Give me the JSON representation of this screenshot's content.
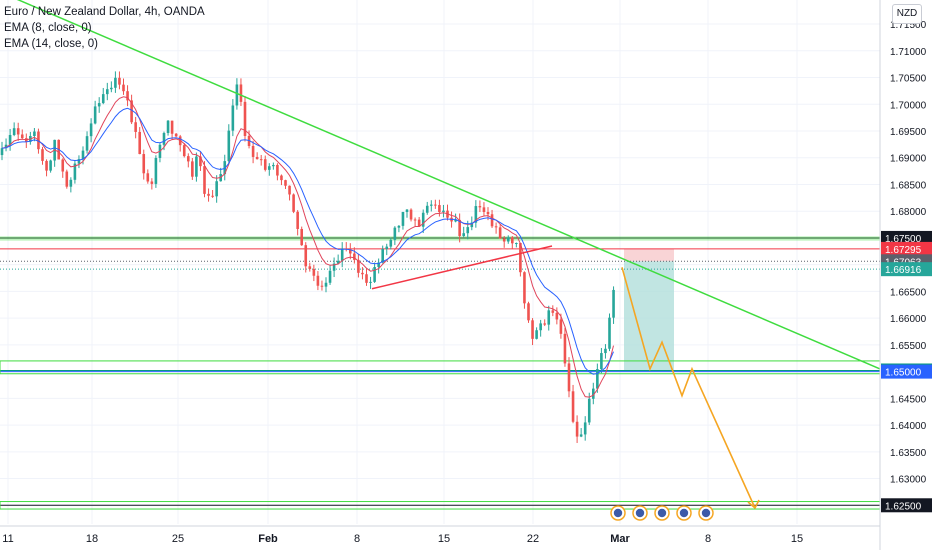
{
  "header": {
    "symbol": "Euro / New Zealand Dollar, 4h, OANDA",
    "indicators": [
      "EMA (8, close, 0)",
      "EMA (14, close, 0)"
    ],
    "currency": "NZD"
  },
  "colors": {
    "bull": "#26a69a",
    "bear": "#ef5350",
    "ema8": "#e0455b",
    "ema14": "#2962ff",
    "trendline": "#3fdc3f",
    "red_line": "#f23645",
    "projection": "#f5a623",
    "target_zone": "#b2dfdb",
    "stop_zone": "#f8c9cc",
    "label_black": "#131722",
    "label_red": "#f23645",
    "label_gray": "#5d606b",
    "label_teal": "#26a69a",
    "label_green": "#089981",
    "label_blue": "#2962ff"
  },
  "chart_data": {
    "type": "candlestick",
    "title": "Euro / New Zealand Dollar, 4h, OANDA",
    "x_tick_labels": [
      "11",
      "18",
      "25",
      "Feb",
      "8",
      "15",
      "22",
      "Mar",
      "8",
      "15"
    ],
    "y_tick_labels": [
      "1.71500",
      "1.71000",
      "1.70500",
      "1.70000",
      "1.69500",
      "1.69000",
      "1.68500",
      "1.68000",
      "1.67500",
      "1.67000",
      "1.66500",
      "1.66000",
      "1.65500",
      "1.65000",
      "1.64500",
      "1.64000",
      "1.63500",
      "1.63000",
      "1.62500"
    ],
    "ylim": [
      1.6215,
      1.7195
    ],
    "price_path": [
      [
        0,
        1.6905
      ],
      [
        6,
        1.6935
      ],
      [
        12,
        1.696
      ],
      [
        18,
        1.695
      ],
      [
        24,
        1.6915
      ],
      [
        30,
        1.6935
      ],
      [
        36,
        1.6945
      ],
      [
        42,
        1.69
      ],
      [
        48,
        1.688
      ],
      [
        54,
        1.693
      ],
      [
        60,
        1.6885
      ],
      [
        66,
        1.6835
      ],
      [
        72,
        1.687
      ],
      [
        78,
        1.691
      ],
      [
        84,
        1.692
      ],
      [
        90,
        1.696
      ],
      [
        96,
        1.6985
      ],
      [
        102,
        1.701
      ],
      [
        108,
        1.703
      ],
      [
        114,
        1.7055
      ],
      [
        120,
        1.7045
      ],
      [
        126,
        1.701
      ],
      [
        132,
        1.696
      ],
      [
        138,
        1.692
      ],
      [
        144,
        1.6875
      ],
      [
        150,
        1.685
      ],
      [
        156,
        1.69
      ],
      [
        162,
        1.6935
      ],
      [
        168,
        1.6955
      ],
      [
        174,
        1.694
      ],
      [
        180,
        1.693
      ],
      [
        186,
        1.691
      ],
      [
        192,
        1.687
      ],
      [
        198,
        1.6905
      ],
      [
        204,
        1.683
      ],
      [
        210,
        1.6815
      ],
      [
        216,
        1.686
      ],
      [
        222,
        1.688
      ],
      [
        228,
        1.6935
      ],
      [
        234,
        1.701
      ],
      [
        238,
        1.7035
      ],
      [
        244,
        1.695
      ],
      [
        250,
        1.6915
      ],
      [
        256,
        1.691
      ],
      [
        262,
        1.6895
      ],
      [
        268,
        1.687
      ],
      [
        274,
        1.688
      ],
      [
        280,
        1.685
      ],
      [
        286,
        1.686
      ],
      [
        292,
        1.682
      ],
      [
        298,
        1.677
      ],
      [
        304,
        1.67
      ],
      [
        310,
        1.668
      ],
      [
        316,
        1.667
      ],
      [
        322,
        1.666
      ],
      [
        328,
        1.669
      ],
      [
        334,
        1.67
      ],
      [
        340,
        1.671
      ],
      [
        346,
        1.6725
      ],
      [
        352,
        1.6715
      ],
      [
        358,
        1.67
      ],
      [
        364,
        1.668
      ],
      [
        370,
        1.6665
      ],
      [
        376,
        1.669
      ],
      [
        382,
        1.6715
      ],
      [
        388,
        1.674
      ],
      [
        394,
        1.677
      ],
      [
        400,
        1.679
      ],
      [
        406,
        1.6805
      ],
      [
        412,
        1.6775
      ],
      [
        418,
        1.6765
      ],
      [
        424,
        1.68
      ],
      [
        430,
        1.683
      ],
      [
        436,
        1.681
      ],
      [
        442,
        1.68
      ],
      [
        448,
        1.6775
      ],
      [
        454,
        1.678
      ],
      [
        460,
        1.676
      ],
      [
        466,
        1.677
      ],
      [
        472,
        1.679
      ],
      [
        478,
        1.681
      ],
      [
        484,
        1.679
      ],
      [
        490,
        1.678
      ],
      [
        496,
        1.677
      ],
      [
        502,
        1.6755
      ],
      [
        508,
        1.675
      ],
      [
        514,
        1.674
      ],
      [
        518,
        1.672
      ],
      [
        522,
        1.665
      ],
      [
        526,
        1.661
      ],
      [
        530,
        1.658
      ],
      [
        534,
        1.657
      ],
      [
        538,
        1.659
      ],
      [
        542,
        1.66
      ],
      [
        546,
        1.659
      ],
      [
        550,
        1.661
      ],
      [
        554,
        1.6605
      ],
      [
        558,
        1.658
      ],
      [
        562,
        1.656
      ],
      [
        566,
        1.651
      ],
      [
        570,
        1.645
      ],
      [
        574,
        1.641
      ],
      [
        578,
        1.6375
      ],
      [
        582,
        1.638
      ],
      [
        586,
        1.641
      ],
      [
        590,
        1.644
      ],
      [
        594,
        1.647
      ],
      [
        598,
        1.651
      ],
      [
        602,
        1.654
      ],
      [
        606,
        1.656
      ],
      [
        610,
        1.661
      ],
      [
        614,
        1.6665
      ],
      [
        617,
        1.669
      ]
    ],
    "horizontal_levels": [
      {
        "price": 1.675,
        "label": "1.67500",
        "style": "label_black"
      },
      {
        "price": 1.67295,
        "label": "1.67295",
        "style": "label_red"
      },
      {
        "price": 1.67063,
        "label": "1.67063",
        "style": "label_gray"
      },
      {
        "price": 1.66916,
        "label": "1.66916",
        "style": "label_teal"
      },
      {
        "price": 1.65021,
        "label": "1.65021",
        "style": "label_green"
      },
      {
        "price": 1.65,
        "label": "1.65000",
        "style": "label_blue"
      },
      {
        "price": 1.625,
        "label": "1.62500",
        "style": "label_black"
      }
    ],
    "descending_trendline": [
      [
        0,
        1.721
      ],
      [
        880,
        1.6505
      ]
    ],
    "ascending_line": [
      [
        372,
        1.6655
      ],
      [
        552,
        1.6735
      ]
    ],
    "position": {
      "x_start": 624,
      "x_end": 674,
      "entry": 1.67063,
      "stop": 1.67295,
      "target": 1.65021
    },
    "projection_path": [
      [
        622,
        1.6695
      ],
      [
        650,
        1.6505
      ],
      [
        662,
        1.6555
      ],
      [
        682,
        1.6455
      ],
      [
        692,
        1.6505
      ],
      [
        755,
        1.6245
      ]
    ],
    "event_icons_count": 5,
    "grid": true
  }
}
